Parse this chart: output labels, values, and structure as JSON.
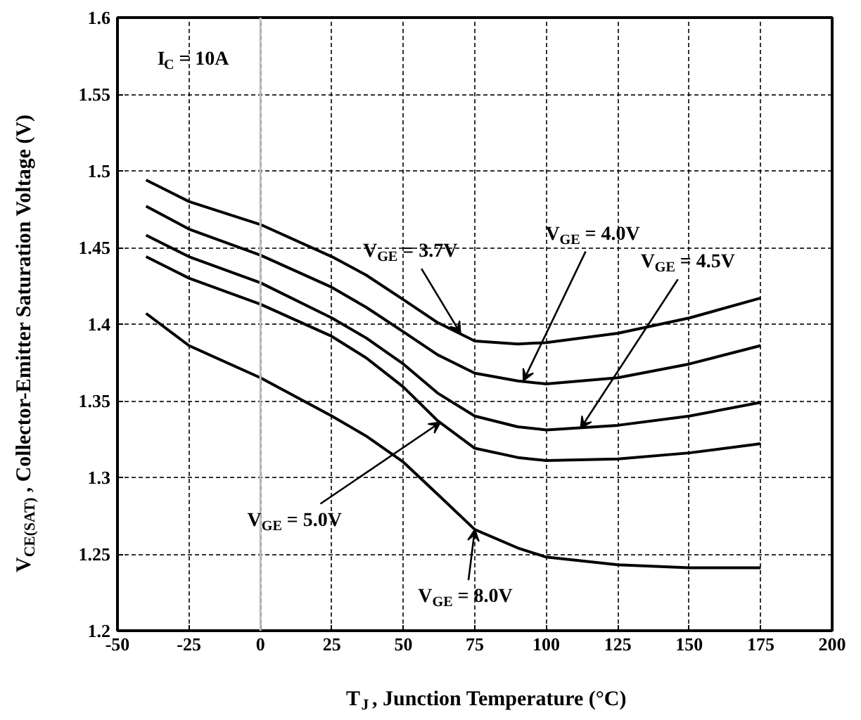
{
  "chart_data": {
    "type": "line",
    "xlabel": "T$_{J}$, Junction Temperature (°C)",
    "ylabel": "V$_{CE(SAT)}$, Collector-Emitter Saturation Voltage (V)",
    "x": [
      -40,
      -25,
      0,
      25,
      37,
      50,
      62,
      75,
      90,
      100,
      125,
      150,
      175
    ],
    "series": [
      {
        "color": "#000000",
        "values": [
          1.494,
          1.48,
          1.465,
          1.444,
          1.432,
          1.416,
          1.401,
          1.389,
          1.387,
          1.388,
          1.394,
          1.404,
          1.417
        ]
      },
      {
        "color": "#000000",
        "values": [
          1.477,
          1.462,
          1.445,
          1.424,
          1.411,
          1.395,
          1.38,
          1.368,
          1.363,
          1.361,
          1.365,
          1.374,
          1.386
        ]
      },
      {
        "color": "#000000",
        "values": [
          1.458,
          1.444,
          1.427,
          1.404,
          1.391,
          1.374,
          1.355,
          1.34,
          1.333,
          1.331,
          1.334,
          1.34,
          1.349
        ]
      },
      {
        "color": "#000000",
        "values": [
          1.444,
          1.43,
          1.413,
          1.392,
          1.378,
          1.359,
          1.337,
          1.319,
          1.313,
          1.311,
          1.312,
          1.316,
          1.322
        ]
      },
      {
        "color": "#000000",
        "values": [
          1.407,
          1.386,
          1.365,
          1.34,
          1.327,
          1.31,
          1.289,
          1.266,
          1.254,
          1.248,
          1.243,
          1.241,
          1.241
        ]
      }
    ],
    "annotations": [
      "I$_{C}$ = 10A",
      {
        "text": "V$_{GE}$ = 3.7V",
        "x": 70,
        "y": 1.394
      },
      {
        "text": "V$_{GE}$ = 4.0V",
        "x": 92,
        "y": 1.363
      },
      {
        "text": "V$_{GE}$ = 4.5V",
        "x": 112,
        "y": 1.332
      },
      {
        "text": "V$_{GE}$ = 5.0V",
        "x": 63,
        "y": 1.336
      },
      {
        "text": "V$_{GE}$ = 8.0V",
        "x": 75,
        "y": 1.266
      }
    ],
    "ref_lines": [
      {
        "axis": "x",
        "value": 0,
        "color": "#c0c0c0",
        "line_style": "solid"
      }
    ],
    "xlim": [
      -50,
      200
    ],
    "ylim": [
      1.2,
      1.6
    ],
    "xticks": [
      -50,
      -25,
      0,
      25,
      50,
      75,
      100,
      125,
      150,
      175,
      200
    ],
    "yticks": [
      1.2,
      1.25,
      1.3,
      1.35,
      1.4,
      1.45,
      1.5,
      1.55,
      1.6
    ],
    "grid": true
  }
}
